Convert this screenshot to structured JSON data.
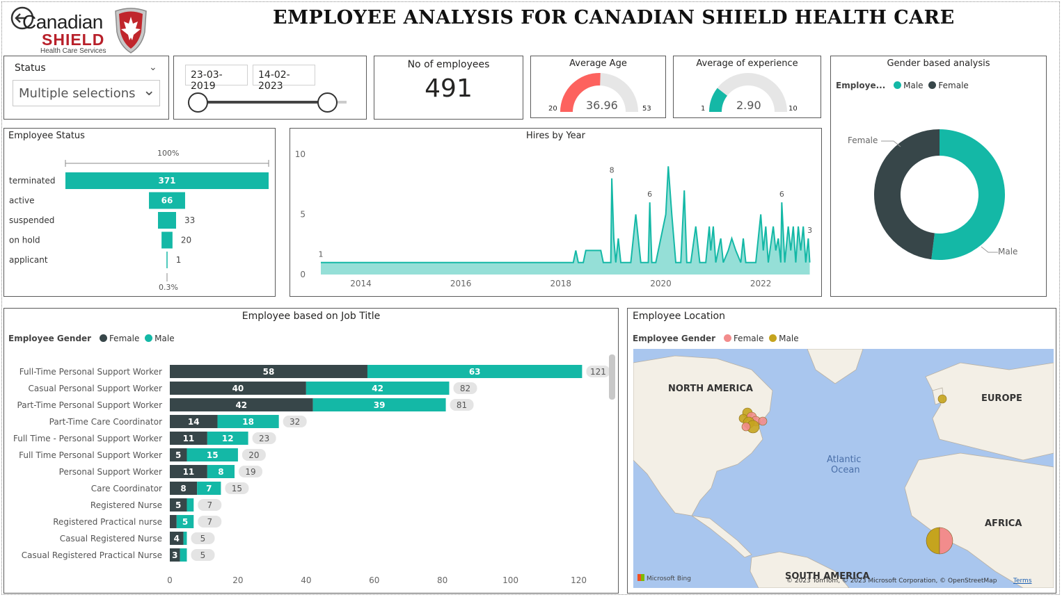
{
  "header": {
    "title": "EMPLOYEE ANALYSIS FOR CANADIAN SHIELD HEALTH CARE",
    "logo": {
      "line1": "Canadian",
      "line2": "SHIELD",
      "line3": "Health Care Services"
    }
  },
  "colors": {
    "teal": "#14b8a6",
    "dark": "#374649",
    "red": "#fd625e",
    "map_female": "#f28c8c",
    "map_male": "#c5a41e",
    "gauge_track": "#e6e6e6"
  },
  "filters": {
    "status": {
      "label": "Status",
      "value": "Multiple selections"
    },
    "dates": {
      "start": "23-03-2019",
      "end": "14-02-2023"
    }
  },
  "kpis": {
    "employees": {
      "label": "No of employees",
      "value": "491"
    },
    "age": {
      "label": "Average Age",
      "value": "36.96",
      "min": "20",
      "max": "53",
      "fraction": 0.51
    },
    "experience": {
      "label": "Average of experience",
      "value": "2.90",
      "min": "1",
      "max": "10",
      "fraction": 0.21
    }
  },
  "status_chart": {
    "title": "Employee Status",
    "top_pct": "100%",
    "bottom_pct": "0.3%",
    "chart_data": {
      "type": "bar",
      "categories": [
        "terminated",
        "active",
        "suspended",
        "on hold",
        "applicant"
      ],
      "values": [
        371,
        66,
        33,
        20,
        1
      ]
    }
  },
  "hires_chart": {
    "title": "Hires by Year",
    "chart_data": {
      "type": "area",
      "ylim": [
        0,
        10
      ],
      "yticks": [
        "0",
        "5",
        "10"
      ],
      "xticks": [
        "2014",
        "2016",
        "2018",
        "2020",
        "2022"
      ],
      "xrange": [
        2013.2,
        2023.0
      ],
      "points": [
        [
          2013.2,
          1
        ],
        [
          2018.25,
          1
        ],
        [
          2018.3,
          2
        ],
        [
          2018.35,
          1
        ],
        [
          2018.45,
          1
        ],
        [
          2018.5,
          2
        ],
        [
          2018.8,
          2
        ],
        [
          2018.85,
          1
        ],
        [
          2019.0,
          1
        ],
        [
          2019.02,
          8
        ],
        [
          2019.06,
          3
        ],
        [
          2019.1,
          1
        ],
        [
          2019.15,
          3
        ],
        [
          2019.2,
          1
        ],
        [
          2019.4,
          1
        ],
        [
          2019.5,
          5
        ],
        [
          2019.6,
          1
        ],
        [
          2019.75,
          1
        ],
        [
          2019.78,
          6
        ],
        [
          2019.82,
          1
        ],
        [
          2019.9,
          1
        ],
        [
          2020.0,
          3
        ],
        [
          2020.1,
          5
        ],
        [
          2020.15,
          9
        ],
        [
          2020.22,
          5
        ],
        [
          2020.3,
          1
        ],
        [
          2020.4,
          1
        ],
        [
          2020.47,
          7
        ],
        [
          2020.52,
          1
        ],
        [
          2020.6,
          1
        ],
        [
          2020.7,
          4
        ],
        [
          2020.78,
          1
        ],
        [
          2020.9,
          1
        ],
        [
          2020.97,
          4
        ],
        [
          2021.0,
          2
        ],
        [
          2021.05,
          4
        ],
        [
          2021.1,
          1
        ],
        [
          2021.2,
          3
        ],
        [
          2021.25,
          1
        ],
        [
          2021.35,
          2
        ],
        [
          2021.42,
          3
        ],
        [
          2021.5,
          2
        ],
        [
          2021.6,
          1
        ],
        [
          2021.65,
          3
        ],
        [
          2021.7,
          1
        ],
        [
          2021.9,
          1
        ],
        [
          2021.95,
          3
        ],
        [
          2022.0,
          5
        ],
        [
          2022.05,
          2
        ],
        [
          2022.1,
          4
        ],
        [
          2022.15,
          1
        ],
        [
          2022.25,
          4
        ],
        [
          2022.3,
          2
        ],
        [
          2022.35,
          3
        ],
        [
          2022.4,
          1
        ],
        [
          2022.42,
          6
        ],
        [
          2022.48,
          1
        ],
        [
          2022.55,
          4
        ],
        [
          2022.6,
          2
        ],
        [
          2022.65,
          4
        ],
        [
          2022.7,
          1
        ],
        [
          2022.75,
          4
        ],
        [
          2022.8,
          2
        ],
        [
          2022.85,
          4
        ],
        [
          2022.9,
          1
        ],
        [
          2022.95,
          3
        ],
        [
          2022.98,
          1
        ]
      ],
      "labels": [
        {
          "x": 2013.2,
          "y": 1,
          "text": "1"
        },
        {
          "x": 2019.02,
          "y": 8,
          "text": "8"
        },
        {
          "x": 2019.78,
          "y": 6,
          "text": "6"
        },
        {
          "x": 2022.42,
          "y": 6,
          "text": "6"
        },
        {
          "x": 2022.98,
          "y": 3,
          "text": "3"
        }
      ]
    }
  },
  "gender_chart": {
    "title": "Gender based analysis",
    "legend_title": "Employe...",
    "legend": [
      "Male",
      "Female"
    ],
    "chart_data": {
      "type": "pie",
      "labels": [
        "Male",
        "Female"
      ],
      "values": [
        52,
        48
      ]
    }
  },
  "job_chart": {
    "title": "Employee  based on Job Title",
    "legend_title": "Employee Gender",
    "legend": [
      "Female",
      "Male"
    ],
    "chart_data": {
      "type": "bar",
      "categories": [
        "Full-Time Personal Support Worker",
        "Casual Personal Support Worker",
        "Part-Time Personal Support Worker",
        "Part-Time Care Coordinator",
        "Full Time - Personal Support Worker",
        "Full Time Personal Support Worker",
        "Personal Support Worker",
        "Care Coordinator",
        "Registered Nurse",
        "Registered Practical nurse",
        "Casual Registered Nurse",
        "Casual Registered Practical Nurse"
      ],
      "series": [
        {
          "name": "Female",
          "values": [
            58,
            40,
            42,
            14,
            11,
            5,
            11,
            8,
            5,
            2,
            4,
            3
          ]
        },
        {
          "name": "Male",
          "values": [
            63,
            42,
            39,
            18,
            12,
            15,
            8,
            7,
            2,
            5,
            1,
            2
          ]
        }
      ],
      "female_labels": [
        "58",
        "40",
        "42",
        "14",
        "11",
        "5",
        "11",
        "8",
        "5",
        "",
        "4",
        "3"
      ],
      "male_labels": [
        "63",
        "42",
        "39",
        "18",
        "12",
        "15",
        "8",
        "7",
        "",
        "5",
        "",
        ""
      ],
      "totals": [
        121,
        82,
        81,
        32,
        23,
        20,
        19,
        15,
        7,
        7,
        5,
        5
      ],
      "xlim": [
        0,
        125
      ],
      "xticks": [
        "0",
        "20",
        "40",
        "60",
        "80",
        "100",
        "120"
      ]
    }
  },
  "location_map": {
    "title": "Employee Location",
    "legend_title": "Employee Gender",
    "legend": [
      "Female",
      "Male"
    ],
    "regions": [
      "NORTH AMERICA",
      "EUROPE",
      "AFRICA",
      "SOUTH AMERICA"
    ],
    "ocean": [
      "Atlantic",
      "Ocean"
    ],
    "attribution": "© 2023 TomTom, © 2023 Microsoft Corporation, © OpenStreetMap",
    "terms": "Terms",
    "bing": "Microsoft Bing"
  }
}
